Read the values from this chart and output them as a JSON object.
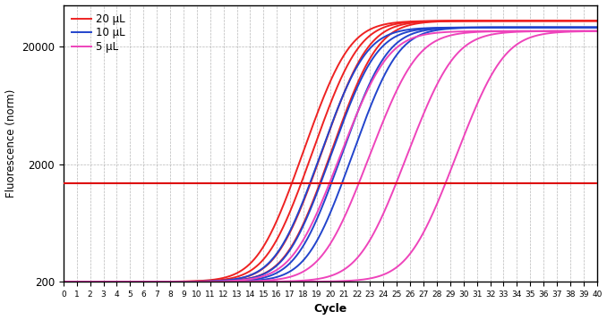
{
  "title": "",
  "xlabel": "Cycle",
  "ylabel": "Fluorescence (norm)",
  "xlim": [
    0,
    40
  ],
  "ylim_log": [
    200,
    45000
  ],
  "yticks": [
    200,
    2000,
    20000
  ],
  "ytick_labels": [
    "200",
    "2000",
    "20000"
  ],
  "threshold": 1380,
  "threshold_color": "#dd1111",
  "background_color": "#ffffff",
  "grid_color": "#999999",
  "series": [
    {
      "color": "#ee2222",
      "label": "20 μL",
      "midpoints": [
        21.0,
        21.7,
        22.4,
        23.1
      ],
      "steepness": 0.85,
      "top": 33000
    },
    {
      "color": "#2244cc",
      "label": "10 μL",
      "midpoints": [
        22.2,
        23.0,
        23.8,
        24.6
      ],
      "steepness": 0.85,
      "top": 29000
    },
    {
      "color": "#ee44bb",
      "label": "5 μL",
      "midpoints": [
        23.8,
        26.0,
        28.8,
        32.5
      ],
      "steepness": 0.8,
      "top": 27000
    }
  ]
}
